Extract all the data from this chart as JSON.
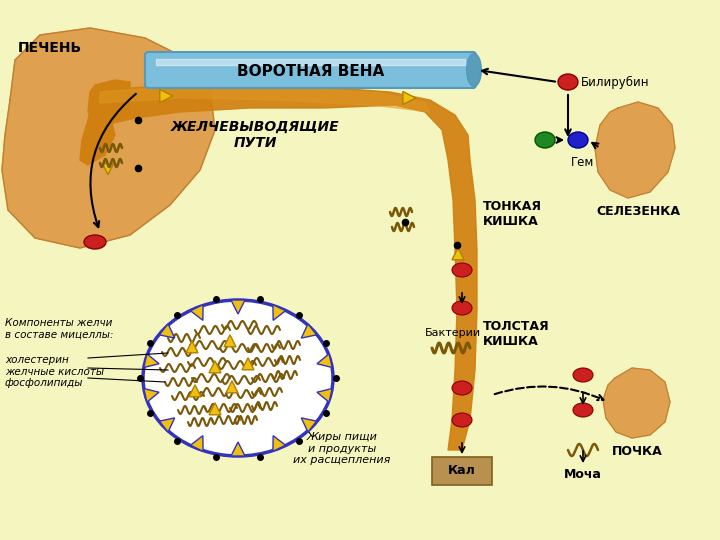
{
  "colors": {
    "bg": "#F5F5C0",
    "liver": "#DFA050",
    "liver_edge": "#C08030",
    "vena_blue": "#7BBFDC",
    "vena_dark": "#5599BB",
    "bile": "#D08010",
    "bile_light": "#E09820",
    "red_circle": "#CC2020",
    "green_circle": "#208820",
    "blue_circle": "#2020CC",
    "spleen": "#DFA050",
    "kidney": "#DFA050",
    "micelle_border": "#3333BB",
    "tri_yellow": "#F0C010",
    "tri_edge": "#B08000",
    "wavy": "#7A5808",
    "black": "#000000",
    "kal_fill": "#B89050"
  },
  "labels": {
    "pecheny": "ПЕЧЕНЬ",
    "vorotnaya_vena": "ВОРОТНАЯ ВЕНА",
    "zhelche": "ЖЕЛЧЕВЫВОДЯЩИЕ\nПУТИ",
    "tonkaya": "ТОНКАЯ\nКИШКА",
    "tolstaya": "ТОЛСТАЯ\nКИШКА",
    "selezenka": "СЕЛЕЗЕНКА",
    "pochka": "ПОЧКА",
    "bilirubin": "Билирубин",
    "gem": "Гем",
    "bakterii": "Бактерии",
    "kal": "Кал",
    "mocha": "Моча",
    "micelle_title": "Компоненты желчи\nв составе мицеллы:",
    "micelle_list": "холестерин\nжелчные кислоты\nфосфолипиды",
    "fats": "Жиры пищи\nи продукты\nих расщепления"
  }
}
